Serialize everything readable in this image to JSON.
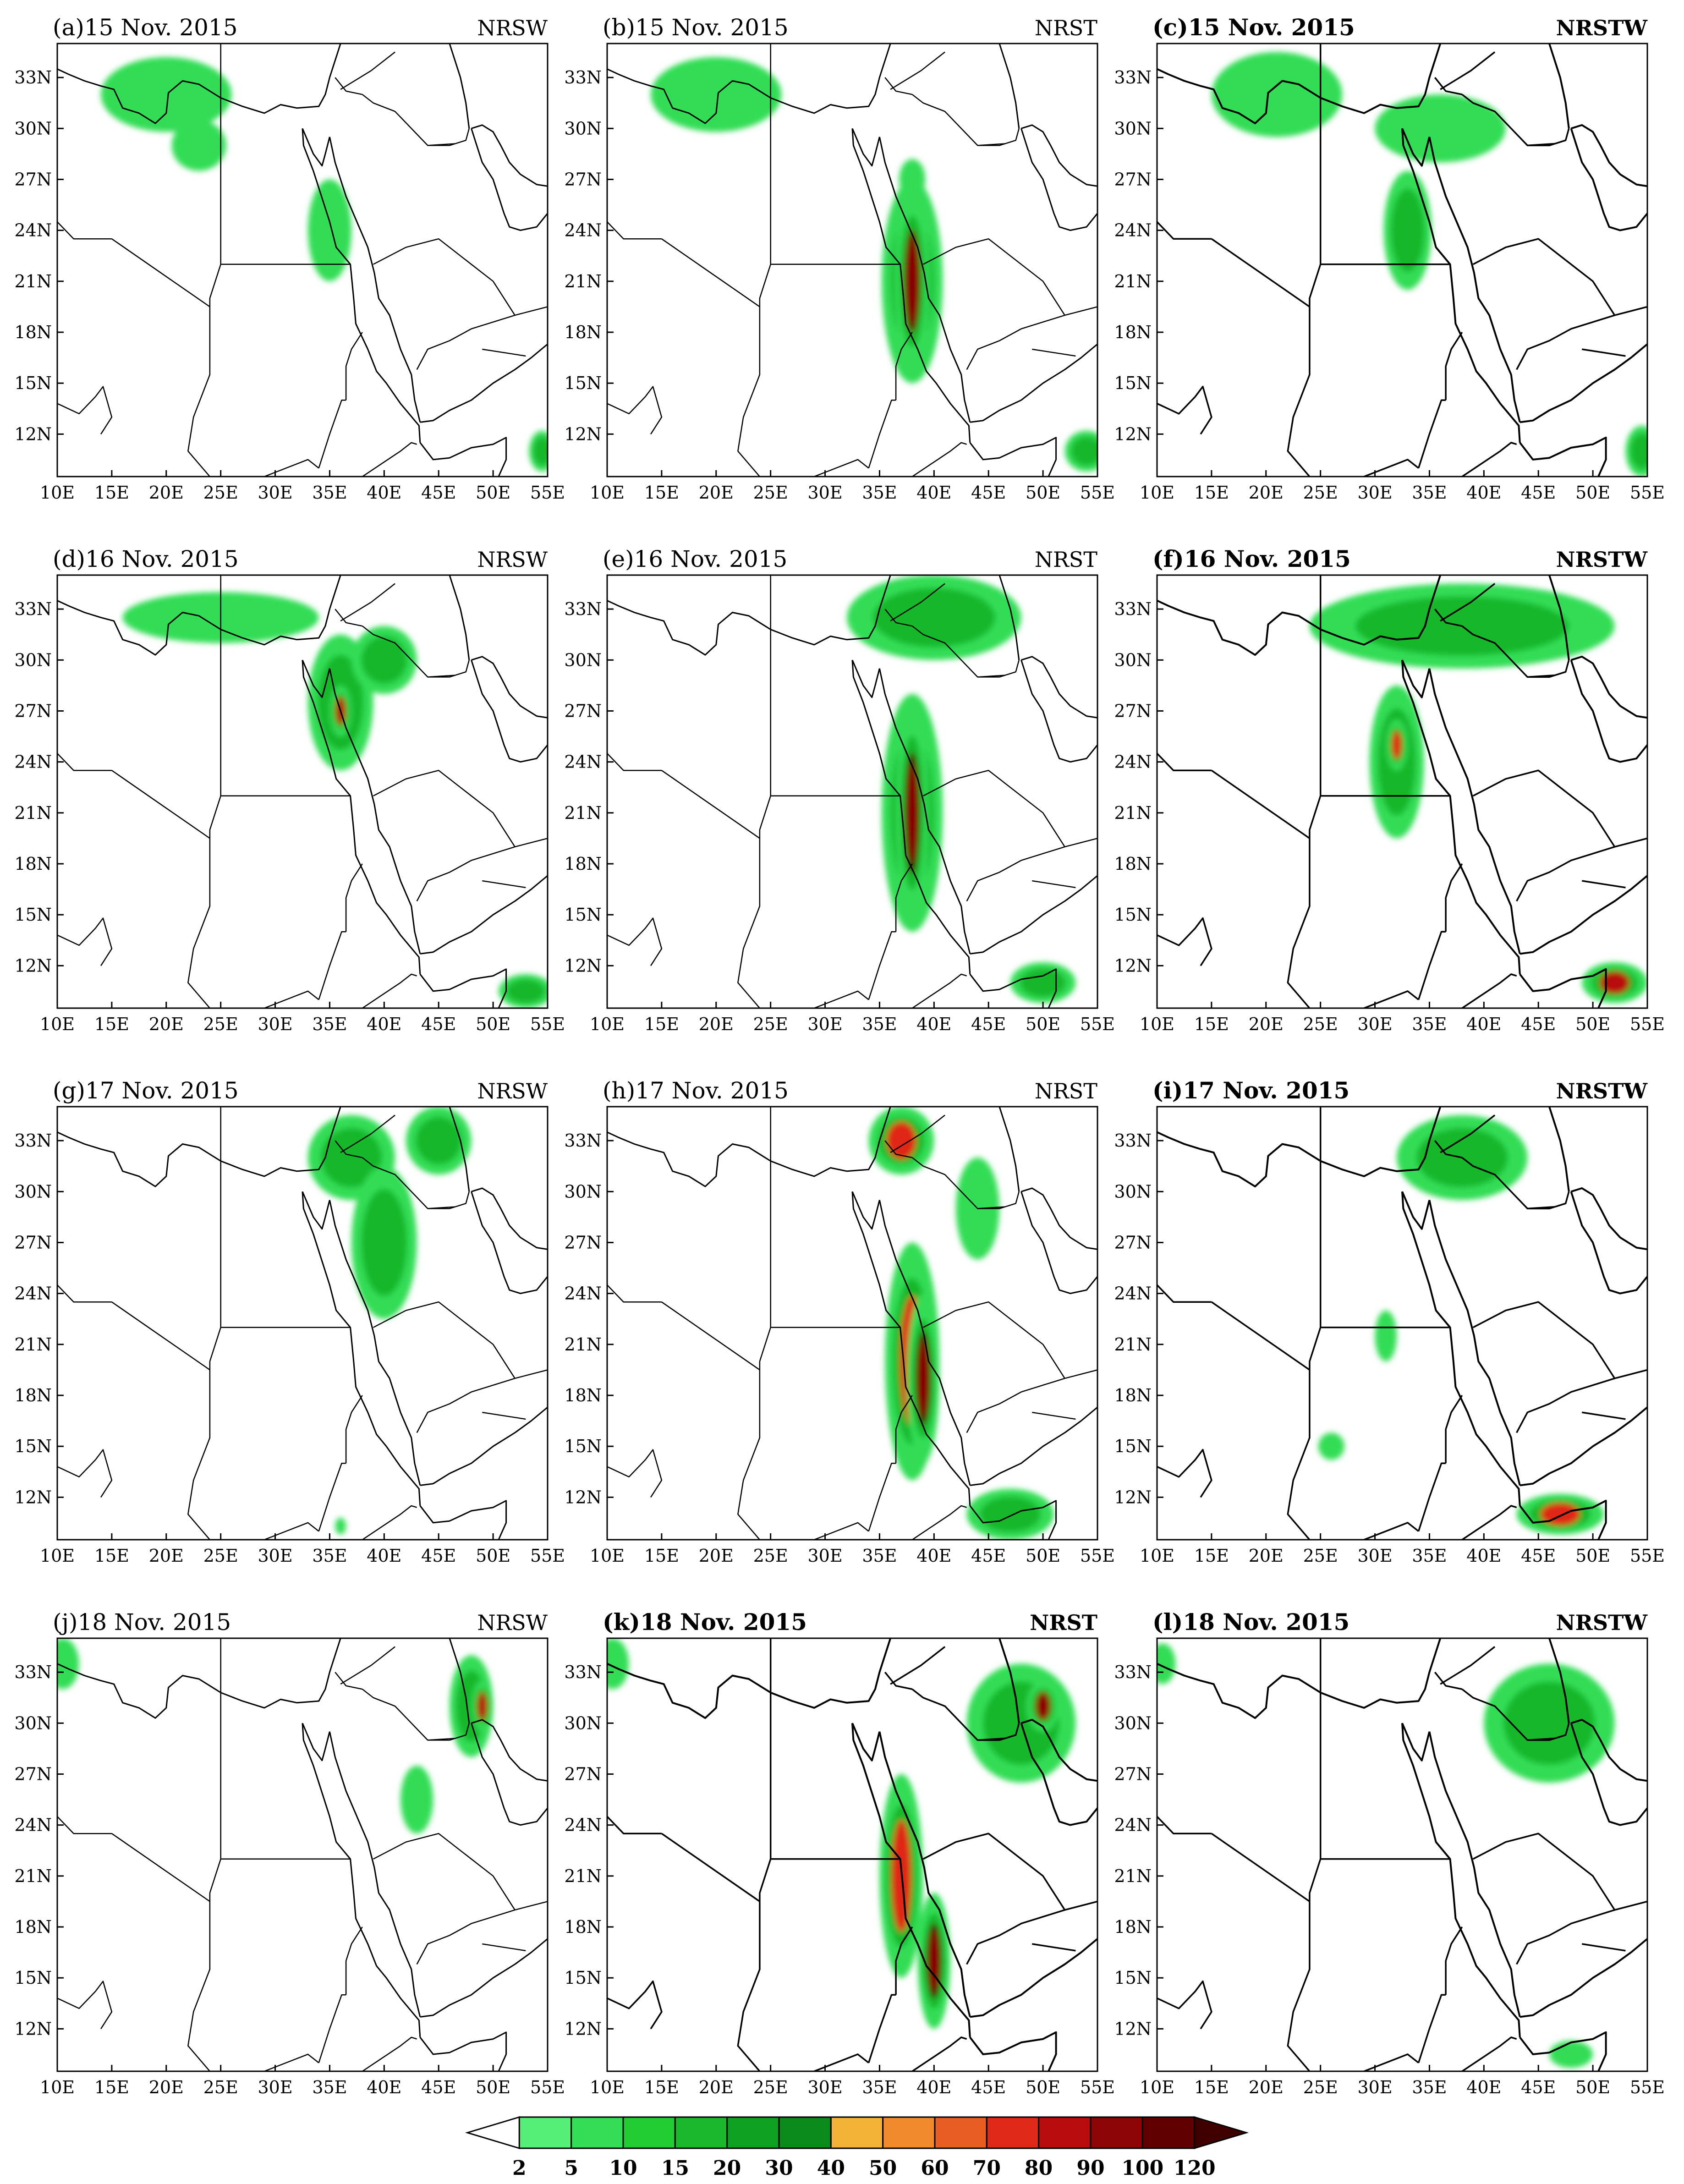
{
  "axis_ticks": {
    "lon": [
      "10E",
      "15E",
      "20E",
      "25E",
      "30E",
      "35E",
      "40E",
      "45E",
      "50E",
      "55E"
    ],
    "lat": [
      "33N",
      "30N",
      "27N",
      "24N",
      "21N",
      "18N",
      "15N",
      "12N"
    ]
  },
  "panels": [
    {
      "letter": "(a)",
      "date": "15  Nov. 2015",
      "exp": "NRSW",
      "bold": false
    },
    {
      "letter": "(b)",
      "date": "15  Nov. 2015",
      "exp": "NRST",
      "bold": false
    },
    {
      "letter": "(c)",
      "date": "15  Nov. 2015",
      "exp": "NRSTW",
      "bold": true
    },
    {
      "letter": "(d)",
      "date": "16  Nov. 2015",
      "exp": "NRSW",
      "bold": false
    },
    {
      "letter": "(e)",
      "date": "16  Nov. 2015",
      "exp": "NRST",
      "bold": false
    },
    {
      "letter": "(f)",
      "date": "16  Nov. 2015",
      "exp": "NRSTW",
      "bold": true
    },
    {
      "letter": "(g)",
      "date": "17  Nov. 2015",
      "exp": "NRSW",
      "bold": false
    },
    {
      "letter": "(h)",
      "date": "17  Nov. 2015",
      "exp": "NRST",
      "bold": false
    },
    {
      "letter": "(i)",
      "date": "17  Nov. 2015",
      "exp": "NRSTW",
      "bold": true
    },
    {
      "letter": "(j)",
      "date": "18  Nov. 2015",
      "exp": "NRSW",
      "bold": false
    },
    {
      "letter": "(k)",
      "date": "18  Nov. 2015",
      "exp": "NRST",
      "bold": true
    },
    {
      "letter": "(l)",
      "date": "18  Nov. 2015",
      "exp": "NRSTW",
      "bold": true
    }
  ],
  "colorbar": {
    "labels": [
      "2",
      "5",
      "10",
      "15",
      "20",
      "30",
      "40",
      "50",
      "60",
      "70",
      "80",
      "90",
      "100",
      "120"
    ],
    "colors": [
      "#ffffff",
      "#55ee77",
      "#33dd55",
      "#22cc33",
      "#18b82a",
      "#0ea020",
      "#0a8a18",
      "#f2b233",
      "#f08a2a",
      "#e85d22",
      "#e02818",
      "#b80c0c",
      "#8c0404",
      "#600000",
      "#400000"
    ]
  },
  "precip_features": [
    {
      "panel": 0,
      "blobs": [
        [
          20,
          32,
          6,
          2.2,
          1
        ],
        [
          23,
          29,
          2.5,
          1.5,
          1
        ],
        [
          35,
          24,
          2,
          3,
          1
        ],
        [
          54.5,
          11,
          1.2,
          1.2,
          3
        ]
      ]
    },
    {
      "panel": 1,
      "blobs": [
        [
          20,
          32,
          6,
          2.2,
          1
        ],
        [
          38,
          21,
          2.8,
          6,
          4
        ],
        [
          38,
          21,
          1.6,
          5.5,
          8
        ],
        [
          38,
          27,
          1.2,
          1.2,
          1
        ],
        [
          54,
          11,
          2,
          1.2,
          2
        ]
      ]
    },
    {
      "panel": 2,
      "blobs": [
        [
          21,
          32,
          6,
          2.5,
          1
        ],
        [
          36,
          30,
          6,
          2,
          1
        ],
        [
          33,
          24,
          2.2,
          3.5,
          2
        ],
        [
          54.5,
          11,
          1.5,
          1.5,
          3
        ]
      ]
    },
    {
      "panel": 3,
      "blobs": [
        [
          25,
          32.5,
          9,
          1.5,
          1
        ],
        [
          36,
          27.5,
          3,
          4,
          3
        ],
        [
          36,
          27,
          1,
          1.5,
          6
        ],
        [
          40,
          30,
          3,
          2,
          2
        ],
        [
          53,
          10.5,
          2.5,
          1,
          3
        ]
      ]
    },
    {
      "panel": 4,
      "blobs": [
        [
          40,
          32.5,
          8,
          2.5,
          2
        ],
        [
          38,
          21,
          2.8,
          7,
          5
        ],
        [
          38,
          21,
          1.5,
          6.5,
          9
        ],
        [
          50,
          11,
          3,
          1.2,
          2
        ]
      ]
    },
    {
      "panel": 5,
      "blobs": [
        [
          38,
          32,
          14,
          2.5,
          3
        ],
        [
          32,
          24,
          2.5,
          4.5,
          3
        ],
        [
          32,
          25,
          1,
          1.5,
          5
        ],
        [
          52,
          11,
          3,
          1.2,
          6
        ]
      ]
    },
    {
      "panel": 6,
      "blobs": [
        [
          37,
          32,
          4,
          2.5,
          3
        ],
        [
          40,
          27,
          3,
          4.5,
          2
        ],
        [
          45,
          33,
          3,
          2,
          3
        ],
        [
          36,
          10.3,
          0.5,
          0.5,
          1
        ]
      ]
    },
    {
      "panel": 7,
      "blobs": [
        [
          37,
          33,
          3,
          2,
          5
        ],
        [
          38,
          20,
          2.5,
          7,
          5
        ],
        [
          39,
          19,
          1.5,
          5,
          9
        ],
        [
          44,
          29,
          2,
          3,
          1
        ],
        [
          47,
          11,
          4,
          1.5,
          3
        ]
      ]
    },
    {
      "panel": 8,
      "blobs": [
        [
          38,
          32,
          6,
          2.5,
          4
        ],
        [
          31,
          21.5,
          1,
          1.5,
          1
        ],
        [
          26,
          15,
          1.2,
          0.8,
          1
        ],
        [
          47,
          11,
          4,
          1.2,
          5
        ]
      ]
    },
    {
      "panel": 9,
      "blobs": [
        [
          48,
          31,
          2,
          3,
          3
        ],
        [
          49,
          31,
          1,
          1.5,
          6
        ],
        [
          43,
          25.5,
          1.5,
          2,
          1
        ],
        [
          10.5,
          33.5,
          1.5,
          1.5,
          1
        ]
      ]
    },
    {
      "panel": 10,
      "blobs": [
        [
          48,
          30,
          5,
          3.5,
          3
        ],
        [
          50,
          31,
          1.5,
          1.5,
          7
        ],
        [
          37,
          21,
          2,
          6,
          5
        ],
        [
          40,
          16,
          1.5,
          4,
          9
        ],
        [
          10.5,
          33.5,
          1.5,
          1.5,
          1
        ]
      ]
    },
    {
      "panel": 11,
      "blobs": [
        [
          46,
          30,
          6,
          3.5,
          2
        ],
        [
          10.5,
          33.5,
          1.2,
          1.2,
          1
        ],
        [
          48,
          10.5,
          2,
          0.8,
          1
        ]
      ]
    }
  ]
}
